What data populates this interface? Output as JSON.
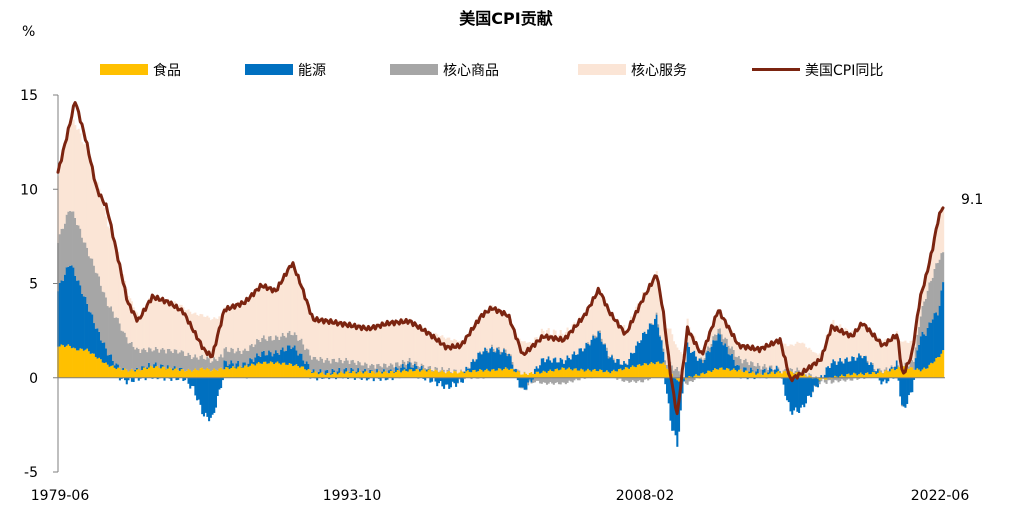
{
  "chart_data": {
    "type": "area",
    "title": "美国CPI贡献",
    "ylabel": "%",
    "ylim": [
      -5,
      15
    ],
    "yticks": [
      -5,
      0,
      5,
      10,
      15
    ],
    "x_range": [
      "1979-06",
      "2022-06"
    ],
    "xtick_labels": [
      "1979-06",
      "1993-10",
      "2008-02",
      "2022-06"
    ],
    "legend_position": "top",
    "legend": [
      {
        "key": "food",
        "label": "食品",
        "color": "#FFC000",
        "kind": "area"
      },
      {
        "key": "energy",
        "label": "能源",
        "color": "#0070C0",
        "kind": "area"
      },
      {
        "key": "core_goods",
        "label": "核心商品",
        "color": "#A6A6A6",
        "kind": "area"
      },
      {
        "key": "core_services",
        "label": "核心服务",
        "color": "#FBE5D6",
        "kind": "area"
      },
      {
        "key": "cpi",
        "label": "美国CPI同比",
        "color": "#7B2410",
        "kind": "line"
      }
    ],
    "end_label": "9.1",
    "series_keypoints": {
      "t": [
        1979.42,
        1980.0,
        1980.25,
        1980.8,
        1981.3,
        1981.8,
        1982.3,
        1982.8,
        1983.3,
        1984.0,
        1984.8,
        1985.5,
        1986.0,
        1986.5,
        1986.9,
        1987.5,
        1988.5,
        1989.3,
        1990.0,
        1990.8,
        1991.2,
        1991.8,
        1992.5,
        1993.5,
        1994.5,
        1995.5,
        1996.5,
        1997.5,
        1998.3,
        1999.0,
        2000.0,
        2000.5,
        2001.3,
        2002.0,
        2003.0,
        2004.0,
        2005.0,
        2005.7,
        2006.2,
        2007.0,
        2007.8,
        2008.5,
        2008.8,
        2009.2,
        2009.5,
        2010.0,
        2010.7,
        2011.5,
        2012.5,
        2013.5,
        2014.5,
        2015.0,
        2015.5,
        2016.5,
        2017.0,
        2018.0,
        2018.5,
        2019.5,
        2020.2,
        2020.45,
        2020.9,
        2021.3,
        2021.6,
        2021.9,
        2022.2,
        2022.42
      ],
      "cpi": [
        10.9,
        13.5,
        14.7,
        12.5,
        10.0,
        9.0,
        6.5,
        4.0,
        3.0,
        4.3,
        4.0,
        3.5,
        2.5,
        1.5,
        1.1,
        3.6,
        4.0,
        4.9,
        4.6,
        6.1,
        5.0,
        3.1,
        3.0,
        2.8,
        2.6,
        2.9,
        3.0,
        2.3,
        1.6,
        1.7,
        3.3,
        3.7,
        3.3,
        1.2,
        2.2,
        2.0,
        3.3,
        4.7,
        3.5,
        2.3,
        4.1,
        5.5,
        3.7,
        0.0,
        -2.0,
        2.6,
        1.2,
        3.6,
        1.7,
        1.5,
        2.0,
        -0.1,
        0.2,
        1.0,
        2.7,
        2.2,
        2.9,
        1.7,
        2.3,
        0.1,
        1.2,
        4.2,
        5.4,
        6.8,
        8.5,
        9.1
      ],
      "food": [
        1.7,
        1.7,
        1.5,
        1.5,
        1.1,
        0.7,
        0.5,
        0.4,
        0.4,
        0.6,
        0.5,
        0.4,
        0.4,
        0.5,
        0.4,
        0.5,
        0.6,
        0.8,
        0.8,
        0.7,
        0.6,
        0.3,
        0.2,
        0.3,
        0.3,
        0.3,
        0.4,
        0.4,
        0.3,
        0.3,
        0.4,
        0.4,
        0.5,
        0.2,
        0.3,
        0.5,
        0.4,
        0.4,
        0.3,
        0.5,
        0.7,
        0.8,
        0.8,
        0.3,
        -0.2,
        0.0,
        0.2,
        0.5,
        0.4,
        0.2,
        0.3,
        0.3,
        0.2,
        -0.1,
        0.0,
        0.2,
        0.2,
        0.3,
        0.5,
        0.6,
        0.5,
        0.4,
        0.5,
        0.8,
        1.1,
        1.4
      ],
      "energy": [
        3.0,
        4.4,
        4.0,
        2.5,
        1.5,
        0.7,
        0.1,
        -0.2,
        0.0,
        0.1,
        0.0,
        0.0,
        -0.6,
        -2.0,
        -2.2,
        0.3,
        0.1,
        0.5,
        0.5,
        1.0,
        0.6,
        0.0,
        0.1,
        0.1,
        0.0,
        0.0,
        0.3,
        -0.1,
        -0.5,
        -0.2,
        1.0,
        1.1,
        0.8,
        -0.7,
        0.7,
        0.4,
        1.2,
        2.0,
        0.8,
        0.2,
        1.5,
        2.4,
        0.8,
        -2.5,
        -3.4,
        1.7,
        0.6,
        1.8,
        0.1,
        0.1,
        0.2,
        -1.8,
        -1.7,
        0.0,
        0.8,
        0.8,
        1.0,
        -0.3,
        0.3,
        -1.8,
        -0.7,
        1.8,
        1.9,
        2.4,
        2.4,
        3.7
      ],
      "core_goods": [
        2.6,
        2.9,
        3.0,
        2.9,
        3.0,
        2.6,
        2.5,
        1.6,
        1.0,
        0.8,
        0.9,
        0.9,
        0.7,
        0.6,
        0.5,
        0.7,
        0.7,
        0.8,
        0.8,
        0.7,
        0.8,
        0.7,
        0.6,
        0.5,
        0.3,
        0.3,
        0.2,
        0.1,
        0.1,
        0.0,
        0.0,
        0.1,
        0.1,
        0.0,
        -0.3,
        -0.3,
        0.0,
        0.1,
        0.1,
        -0.2,
        -0.2,
        0.1,
        0.1,
        0.4,
        0.5,
        -0.3,
        0.1,
        0.3,
        0.5,
        0.3,
        0.0,
        0.1,
        0.2,
        -0.1,
        -0.2,
        -0.1,
        0.0,
        0.1,
        0.0,
        0.0,
        0.3,
        1.0,
        2.0,
        2.2,
        2.8,
        1.5
      ],
      "core_services": [
        3.5,
        4.6,
        5.0,
        5.2,
        4.8,
        4.3,
        3.6,
        2.5,
        1.8,
        2.8,
        2.6,
        2.4,
        2.3,
        2.2,
        2.2,
        2.1,
        2.6,
        2.8,
        2.5,
        3.6,
        3.0,
        2.1,
        2.1,
        1.9,
        2.0,
        2.3,
        2.1,
        1.9,
        1.7,
        1.6,
        1.9,
        2.1,
        1.9,
        1.7,
        1.5,
        1.4,
        1.7,
        2.2,
        2.3,
        1.8,
        2.1,
        2.2,
        2.0,
        1.8,
        1.1,
        1.2,
        0.3,
        1.0,
        0.7,
        0.9,
        1.5,
        1.3,
        1.5,
        1.2,
        2.1,
        1.3,
        1.7,
        1.6,
        1.5,
        1.3,
        1.1,
        1.0,
        1.0,
        1.4,
        2.2,
        2.5
      ]
    }
  }
}
